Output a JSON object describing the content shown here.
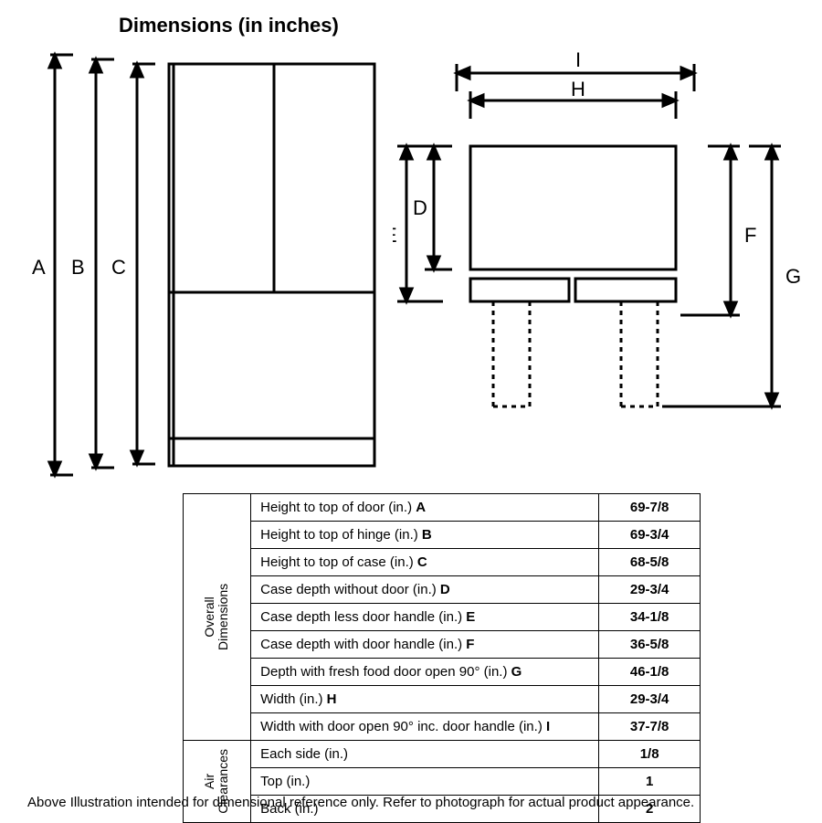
{
  "title": "Dimensions (in inches)",
  "labels": {
    "A": "A",
    "B": "B",
    "C": "C",
    "D": "D",
    "E": "E",
    "F": "F",
    "G": "G",
    "H": "H",
    "I": "I"
  },
  "groups": {
    "overall": "Overall\nDimensions",
    "air": "Air\nClearances"
  },
  "rows": {
    "overall": [
      {
        "label": "Height to top of door (in.) ",
        "bold": "A",
        "value": "69-7/8"
      },
      {
        "label": "Height to top of hinge (in.) ",
        "bold": "B",
        "value": "69-3/4"
      },
      {
        "label": "Height to top of case (in.) ",
        "bold": "C",
        "value": "68-5/8"
      },
      {
        "label": "Case depth without door (in.) ",
        "bold": "D",
        "value": "29-3/4"
      },
      {
        "label": "Case depth less door handle (in.) ",
        "bold": "E",
        "value": "34-1/8"
      },
      {
        "label": "Case depth with door handle (in.) ",
        "bold": "F",
        "value": "36-5/8"
      },
      {
        "label": "Depth with fresh food door open 90° (in.) ",
        "bold": "G",
        "value": "46-1/8"
      },
      {
        "label": "Width (in.) ",
        "bold": "H",
        "value": "29-3/4"
      },
      {
        "label": "Width with door open 90° inc. door handle (in.) ",
        "bold": "I",
        "value": "37-7/8"
      }
    ],
    "air": [
      {
        "label": "Each side (in.)",
        "bold": "",
        "value": "1/8"
      },
      {
        "label": "Top (in.)",
        "bold": "",
        "value": "1"
      },
      {
        "label": "Back (in.)",
        "bold": "",
        "value": "2"
      }
    ]
  },
  "note": "Above Illustration intended for dimensional reference only. Refer to photograph for actual product appearance.",
  "style": {
    "stroke": "#000000",
    "stroke_width": 3,
    "dash": "4,4",
    "label_font": 20
  }
}
